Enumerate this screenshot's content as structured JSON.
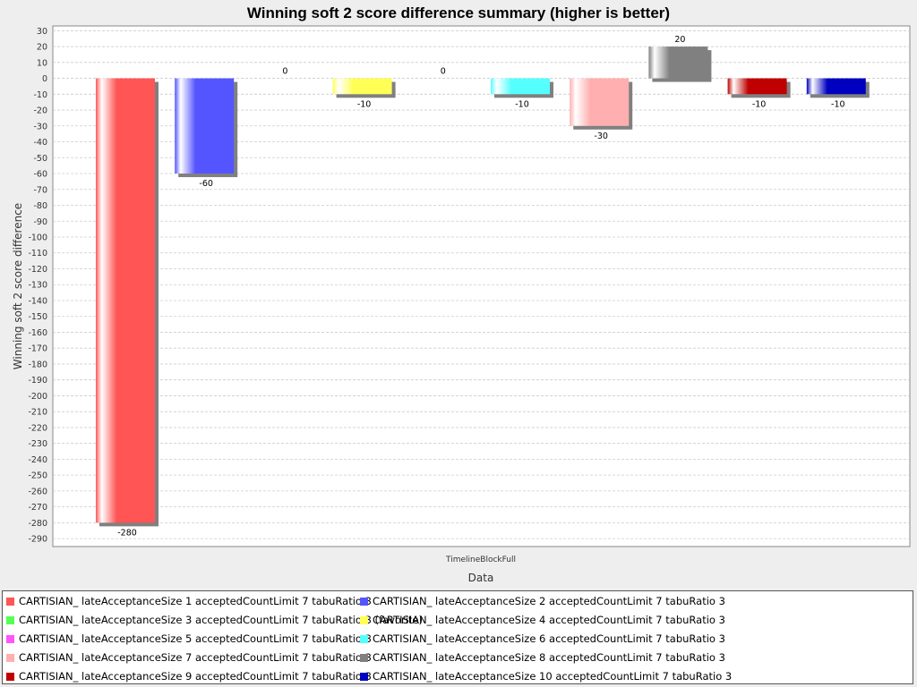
{
  "chart_data": {
    "type": "bar",
    "title": "Winning soft 2 score difference summary (higher is better)",
    "xlabel": "Data",
    "ylabel": "Winning soft 2 score difference",
    "categories": [
      "TimelineBlockFull"
    ],
    "ylim": [
      -295,
      33
    ],
    "yticks": [
      30,
      20,
      10,
      0,
      -10,
      -20,
      -30,
      -40,
      -50,
      -60,
      -70,
      -80,
      -90,
      -100,
      -110,
      -120,
      -130,
      -140,
      -150,
      -160,
      -170,
      -180,
      -190,
      -200,
      -210,
      -220,
      -230,
      -240,
      -250,
      -260,
      -270,
      -280,
      -290
    ],
    "grid": true,
    "legend_position": "bottom",
    "series": [
      {
        "name": "CARTISIAN_ lateAcceptanceSize 1 acceptedCountLimit 7 tabuRatio 3",
        "values": [
          -280
        ],
        "color": "#ff5555"
      },
      {
        "name": "CARTISIAN_ lateAcceptanceSize 2 acceptedCountLimit 7 tabuRatio 3",
        "values": [
          -60
        ],
        "color": "#5555ff"
      },
      {
        "name": "CARTISIAN_ lateAcceptanceSize 3 acceptedCountLimit 7 tabuRatio 3 (favorite)",
        "values": [
          0
        ],
        "color": "#55ff55"
      },
      {
        "name": "CARTISIAN_ lateAcceptanceSize 4 acceptedCountLimit 7 tabuRatio 3",
        "values": [
          -10
        ],
        "color": "#ffff55"
      },
      {
        "name": "CARTISIAN_ lateAcceptanceSize 5 acceptedCountLimit 7 tabuRatio 3",
        "values": [
          0
        ],
        "color": "#ff55ff"
      },
      {
        "name": "CARTISIAN_ lateAcceptanceSize 6 acceptedCountLimit 7 tabuRatio 3",
        "values": [
          -10
        ],
        "color": "#55ffff"
      },
      {
        "name": "CARTISIAN_ lateAcceptanceSize 7 acceptedCountLimit 7 tabuRatio 3",
        "values": [
          -30
        ],
        "color": "#ffafaf"
      },
      {
        "name": "CARTISIAN_ lateAcceptanceSize 8 acceptedCountLimit 7 tabuRatio 3",
        "values": [
          20
        ],
        "color": "#808080"
      },
      {
        "name": "CARTISIAN_ lateAcceptanceSize 9 acceptedCountLimit 7 tabuRatio 3",
        "values": [
          -10
        ],
        "color": "#c00000"
      },
      {
        "name": "CARTISIAN_ lateAcceptanceSize 10 acceptedCountLimit 7 tabuRatio 3",
        "values": [
          -10
        ],
        "color": "#0000c0"
      }
    ]
  }
}
